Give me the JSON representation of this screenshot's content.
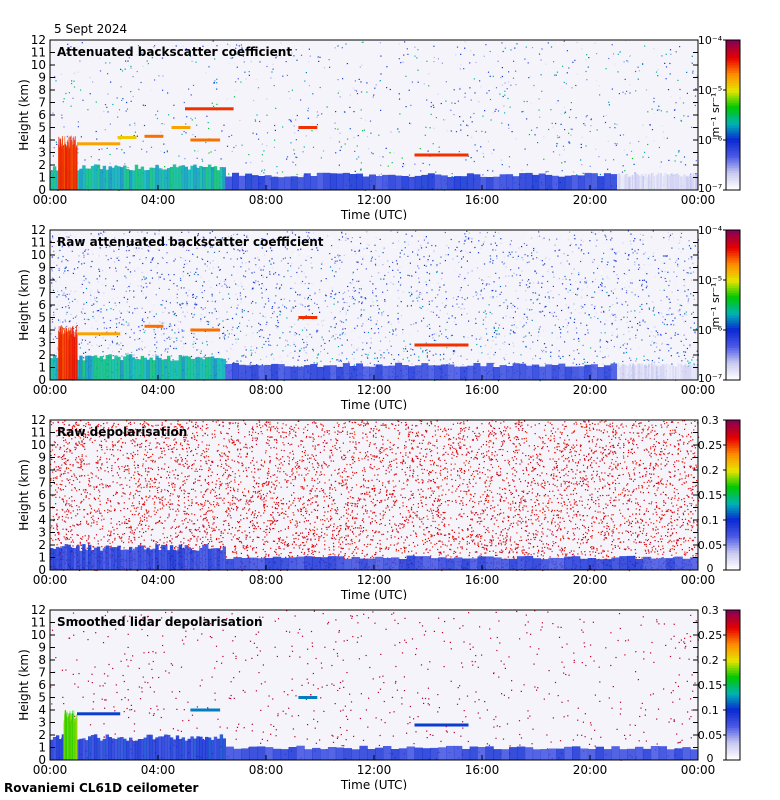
{
  "header": {
    "date": "5 Sept 2024"
  },
  "footer": {
    "instrument": "Rovaniemi CL61D ceilometer"
  },
  "colors": {
    "plot_background": "#f4f4fa",
    "no_signal": "#d8d8d8",
    "colormap": [
      "#ffffff",
      "#c8c8f0",
      "#4b5ae6",
      "#0a28d2",
      "#00b4b4",
      "#00c800",
      "#e6e600",
      "#ff8c00",
      "#e60000",
      "#8c0050"
    ]
  },
  "chart_data": [
    {
      "id": "panel1",
      "type": "heatmap",
      "title": "Attenuated backscatter coefficient",
      "xlabel": "Time (UTC)",
      "ylabel": "Height (km)",
      "xlim_hours": [
        0,
        24
      ],
      "xticks": [
        "00:00",
        "04:00",
        "08:00",
        "12:00",
        "16:00",
        "20:00",
        "00:00"
      ],
      "ylim_km": [
        0,
        12
      ],
      "yticks": [
        "0",
        "1",
        "2",
        "3",
        "4",
        "5",
        "6",
        "7",
        "8",
        "9",
        "10",
        "11",
        "12"
      ],
      "colorbar": {
        "scale": "log",
        "unit_label": "m⁻¹ sr⁻¹",
        "tick_labels": [
          "10⁻⁷",
          "10⁻⁶",
          "10⁻⁵",
          "10⁻⁴"
        ],
        "tick_values": [
          -7,
          -6,
          -5,
          -4
        ],
        "range": [
          -7,
          -4
        ]
      },
      "layers": [
        {
          "t0": 0.0,
          "t1": 6.5,
          "h0": 0.0,
          "h1": 1.8,
          "level": 0.45
        },
        {
          "t0": 6.5,
          "t1": 21.0,
          "h0": 0.0,
          "h1": 1.2,
          "level": 0.3
        },
        {
          "t0": 21.0,
          "t1": 24.0,
          "h0": 0.0,
          "h1": 1.2,
          "level": 0.08
        },
        {
          "t0": 0.3,
          "t1": 1.0,
          "h0": 0.0,
          "h1": 3.8,
          "level": 0.85
        }
      ],
      "cloud_segments": [
        {
          "t0": 1.0,
          "t1": 2.6,
          "h": 3.7,
          "level": 0.75
        },
        {
          "t0": 2.5,
          "t1": 3.2,
          "h": 4.2,
          "level": 0.7
        },
        {
          "t0": 3.5,
          "t1": 4.2,
          "h": 4.3,
          "level": 0.8
        },
        {
          "t0": 4.5,
          "t1": 5.2,
          "h": 5.0,
          "level": 0.75
        },
        {
          "t0": 5.0,
          "t1": 6.8,
          "h": 6.5,
          "level": 0.85
        },
        {
          "t0": 5.2,
          "t1": 6.3,
          "h": 4.0,
          "level": 0.8
        },
        {
          "t0": 9.2,
          "t1": 9.9,
          "h": 5.0,
          "level": 0.85
        },
        {
          "t0": 13.5,
          "t1": 15.5,
          "h": 2.8,
          "level": 0.85
        }
      ],
      "noise": {
        "density": 0.5,
        "max_h": 12,
        "level_base": 0.35,
        "level_spread": 0.5
      }
    },
    {
      "id": "panel2",
      "type": "heatmap",
      "title": "Raw attenuated backscatter coefficient",
      "xlabel": "Time (UTC)",
      "ylabel": "Height (km)",
      "xlim_hours": [
        0,
        24
      ],
      "xticks": [
        "00:00",
        "04:00",
        "08:00",
        "12:00",
        "16:00",
        "20:00",
        "00:00"
      ],
      "ylim_km": [
        0,
        12
      ],
      "yticks": [
        "0",
        "1",
        "2",
        "3",
        "4",
        "5",
        "6",
        "7",
        "8",
        "9",
        "10",
        "11",
        "12"
      ],
      "colorbar": {
        "scale": "log",
        "unit_label": "m⁻¹ sr⁻¹",
        "tick_labels": [
          "10⁻⁷",
          "10⁻⁶",
          "10⁻⁵",
          "10⁻⁴"
        ],
        "tick_values": [
          -7,
          -6,
          -5,
          -4
        ],
        "range": [
          -7,
          -4
        ]
      },
      "layers": [
        {
          "t0": 0.0,
          "t1": 6.5,
          "h0": 0.0,
          "h1": 1.8,
          "level": 0.45
        },
        {
          "t0": 6.5,
          "t1": 21.0,
          "h0": 0.0,
          "h1": 1.2,
          "level": 0.28
        },
        {
          "t0": 21.0,
          "t1": 24.0,
          "h0": 0.0,
          "h1": 1.2,
          "level": 0.08
        },
        {
          "t0": 0.3,
          "t1": 1.0,
          "h0": 0.0,
          "h1": 3.8,
          "level": 0.85
        }
      ],
      "cloud_segments": [
        {
          "t0": 1.0,
          "t1": 2.6,
          "h": 3.7,
          "level": 0.75
        },
        {
          "t0": 3.5,
          "t1": 4.2,
          "h": 4.3,
          "level": 0.8
        },
        {
          "t0": 5.2,
          "t1": 6.3,
          "h": 4.0,
          "level": 0.8
        },
        {
          "t0": 9.2,
          "t1": 9.9,
          "h": 5.0,
          "level": 0.85
        },
        {
          "t0": 13.5,
          "t1": 15.5,
          "h": 2.8,
          "level": 0.85
        }
      ],
      "noise": {
        "density": 1.6,
        "max_h": 12,
        "level_base": 0.28,
        "level_spread": 0.45
      }
    },
    {
      "id": "panel3",
      "type": "heatmap",
      "title": "Raw depolarisation",
      "xlabel": "Time (UTC)",
      "ylabel": "Height (km)",
      "xlim_hours": [
        0,
        24
      ],
      "xticks": [
        "00:00",
        "04:00",
        "08:00",
        "12:00",
        "16:00",
        "20:00",
        "00:00"
      ],
      "ylim_km": [
        0,
        12
      ],
      "yticks": [
        "0",
        "1",
        "2",
        "3",
        "4",
        "5",
        "6",
        "7",
        "8",
        "9",
        "10",
        "11",
        "12"
      ],
      "colorbar": {
        "scale": "linear",
        "unit_label": "",
        "tick_labels": [
          "0",
          "0.05",
          "0.1",
          "0.15",
          "0.2",
          "0.25",
          "0.3"
        ],
        "tick_values": [
          0,
          0.05,
          0.1,
          0.15,
          0.2,
          0.25,
          0.3
        ],
        "range": [
          0,
          0.3
        ]
      },
      "layers": [
        {
          "t0": 0.0,
          "t1": 6.5,
          "h0": 0.0,
          "h1": 1.8,
          "level": 0.3
        },
        {
          "t0": 6.5,
          "t1": 24.0,
          "h0": 0.0,
          "h1": 1.0,
          "level": 0.28
        }
      ],
      "cloud_segments": [],
      "noise": {
        "density": 3.0,
        "max_h": 12,
        "level_base": 0.9,
        "level_spread": 0.1
      }
    },
    {
      "id": "panel4",
      "type": "heatmap",
      "title": "Smoothed lidar depolarisation",
      "xlabel": "Time (UTC)",
      "ylabel": "Height (km)",
      "xlim_hours": [
        0,
        24
      ],
      "xticks": [
        "00:00",
        "04:00",
        "08:00",
        "12:00",
        "16:00",
        "20:00",
        "00:00"
      ],
      "ylim_km": [
        0,
        12
      ],
      "yticks": [
        "0",
        "1",
        "2",
        "3",
        "4",
        "5",
        "6",
        "7",
        "8",
        "9",
        "10",
        "11",
        "12"
      ],
      "colorbar": {
        "scale": "linear",
        "unit_label": "",
        "tick_labels": [
          "0",
          "0.05",
          "0.1",
          "0.15",
          "0.2",
          "0.25",
          "0.3"
        ],
        "tick_values": [
          0,
          0.05,
          0.1,
          0.15,
          0.2,
          0.25,
          0.3
        ],
        "range": [
          0,
          0.3
        ]
      },
      "layers": [
        {
          "t0": 0.0,
          "t1": 6.5,
          "h0": 0.0,
          "h1": 1.8,
          "level": 0.32
        },
        {
          "t0": 6.5,
          "t1": 24.0,
          "h0": 0.0,
          "h1": 1.0,
          "level": 0.28
        },
        {
          "t0": 0.5,
          "t1": 1.0,
          "h0": 0.0,
          "h1": 3.5,
          "level": 0.6
        }
      ],
      "cloud_segments": [
        {
          "t0": 1.0,
          "t1": 2.6,
          "h": 3.7,
          "level": 0.35
        },
        {
          "t0": 5.2,
          "t1": 6.3,
          "h": 4.0,
          "level": 0.4
        },
        {
          "t0": 9.2,
          "t1": 9.9,
          "h": 5.0,
          "level": 0.4
        },
        {
          "t0": 13.5,
          "t1": 15.5,
          "h": 2.8,
          "level": 0.35
        }
      ],
      "noise": {
        "density": 0.35,
        "max_h": 12,
        "level_base": 0.95,
        "level_spread": 0.05
      }
    }
  ]
}
